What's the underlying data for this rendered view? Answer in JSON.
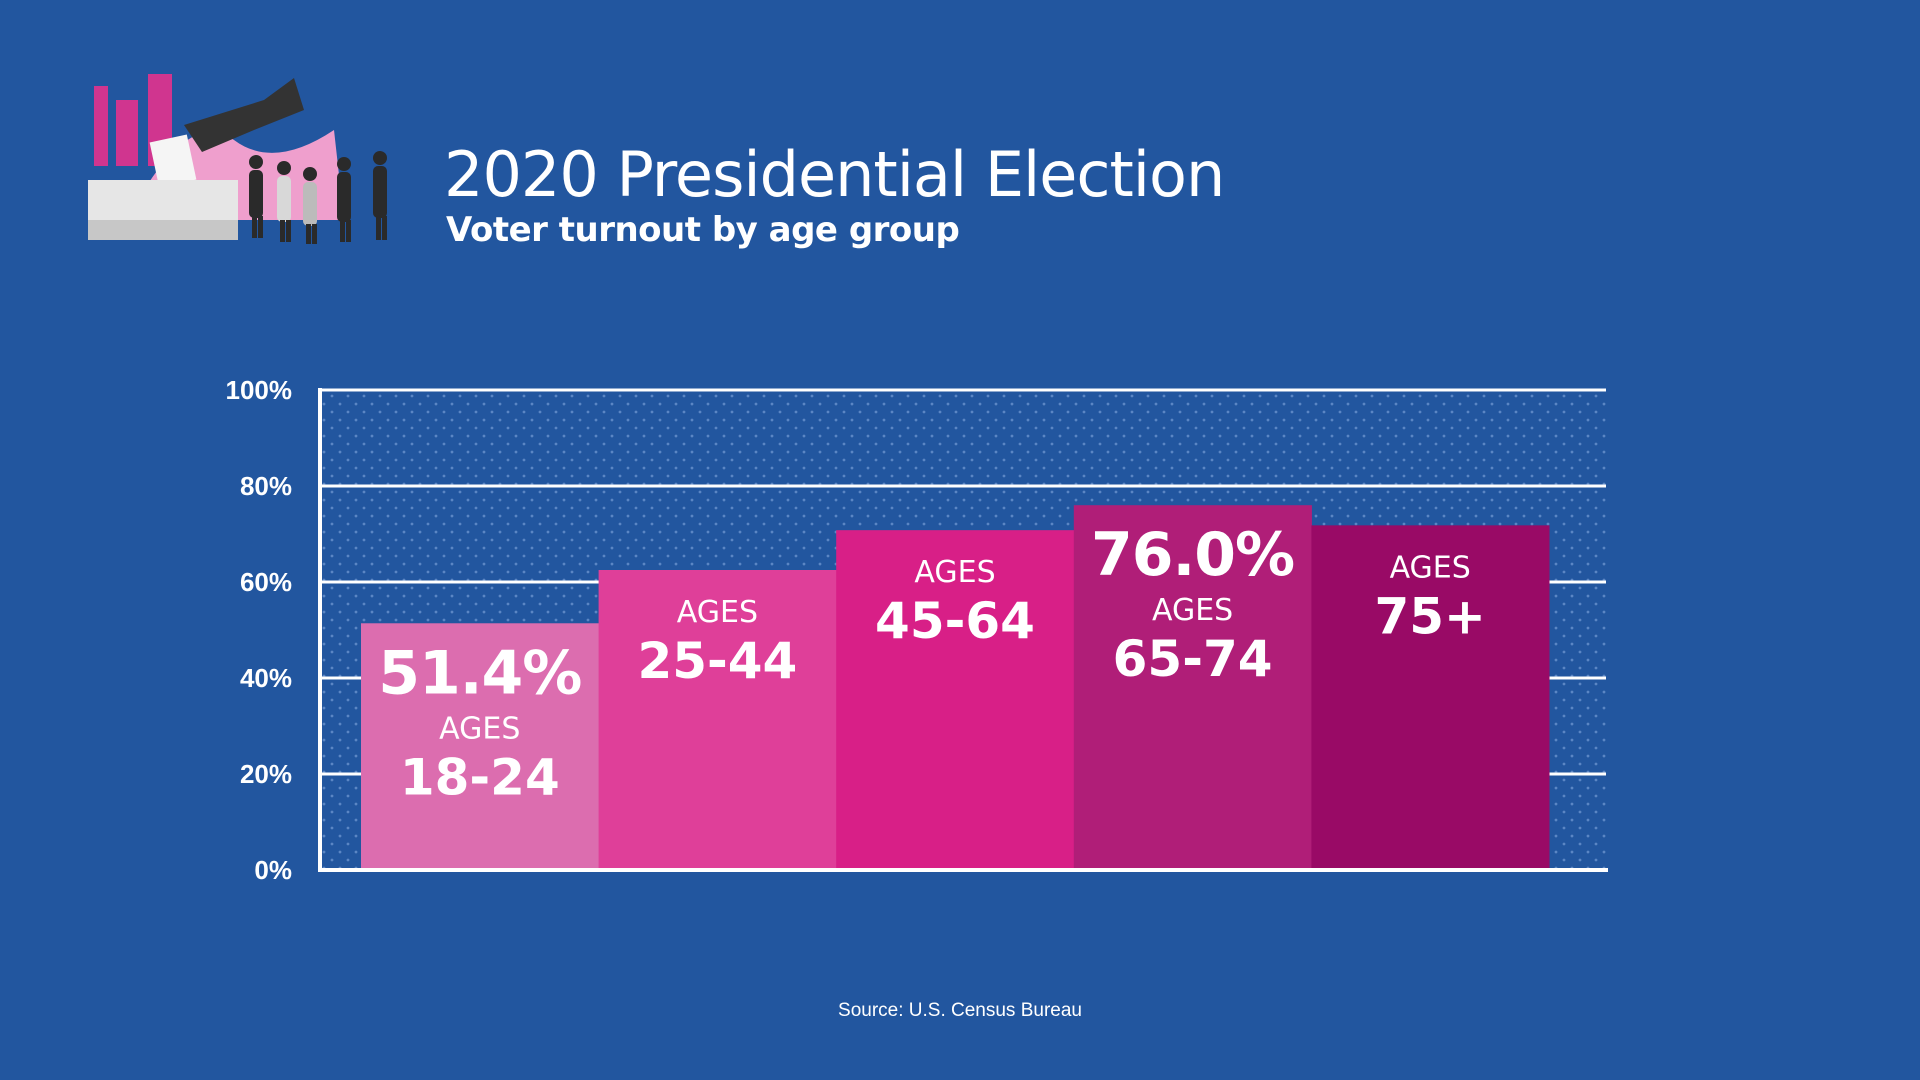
{
  "header": {
    "title": "2020 Presidential Election",
    "subtitle": "Voter turnout by age group"
  },
  "footer": {
    "source": "Source: U.S. Census Bureau"
  },
  "colors": {
    "background": "#22569f",
    "bars": [
      "#dc6daf",
      "#df3f99",
      "#d81f87",
      "#b01e78",
      "#990a66"
    ]
  },
  "chart_data": {
    "type": "bar",
    "categories": [
      "18-24",
      "25-44",
      "45-64",
      "65-74",
      "75+"
    ],
    "category_prefix": "AGES",
    "values": [
      51.4,
      62.5,
      70.8,
      76.0,
      71.8
    ],
    "value_labels": [
      "51.4%",
      "",
      "",
      "76.0%",
      ""
    ],
    "y_ticks": [
      "0%",
      "20%",
      "40%",
      "60%",
      "80%",
      "100%"
    ],
    "y_tick_values": [
      0,
      20,
      40,
      60,
      80,
      100
    ],
    "ylim": [
      0,
      100
    ],
    "grid": true,
    "legend": "none"
  }
}
